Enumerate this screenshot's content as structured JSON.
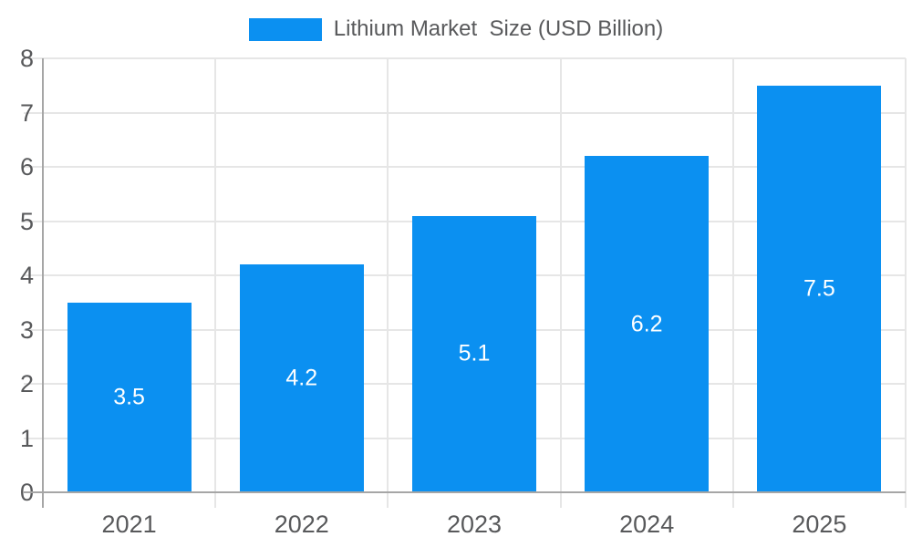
{
  "chart_data": {
    "type": "bar",
    "title": "Lithium Market  Size (USD Billion)",
    "legend": {
      "label": "Lithium Market  Size (USD Billion)",
      "position": "top-center"
    },
    "categories": [
      "2021",
      "2022",
      "2023",
      "2024",
      "2025"
    ],
    "series": [
      {
        "name": "Lithium Market  Size (USD Billion)",
        "values": [
          3.5,
          4.2,
          5.1,
          6.2,
          7.5
        ]
      }
    ],
    "value_labels": [
      "3.5",
      "4.2",
      "5.1",
      "6.2",
      "7.5"
    ],
    "xlabel": "",
    "ylabel": "",
    "ylim": [
      0,
      8
    ],
    "ytick_step": 1,
    "ytick_labels": [
      "0",
      "1",
      "2",
      "3",
      "4",
      "5",
      "6",
      "7",
      "8"
    ],
    "grid": "both",
    "colors": {
      "bar": "#0b90f1",
      "grid": "#e6e6e6",
      "axis": "#a6a6a6",
      "tick_text": "#58595b",
      "legend_text": "#58595b",
      "value_label_text": "#ffffff",
      "background": "#ffffff"
    }
  }
}
